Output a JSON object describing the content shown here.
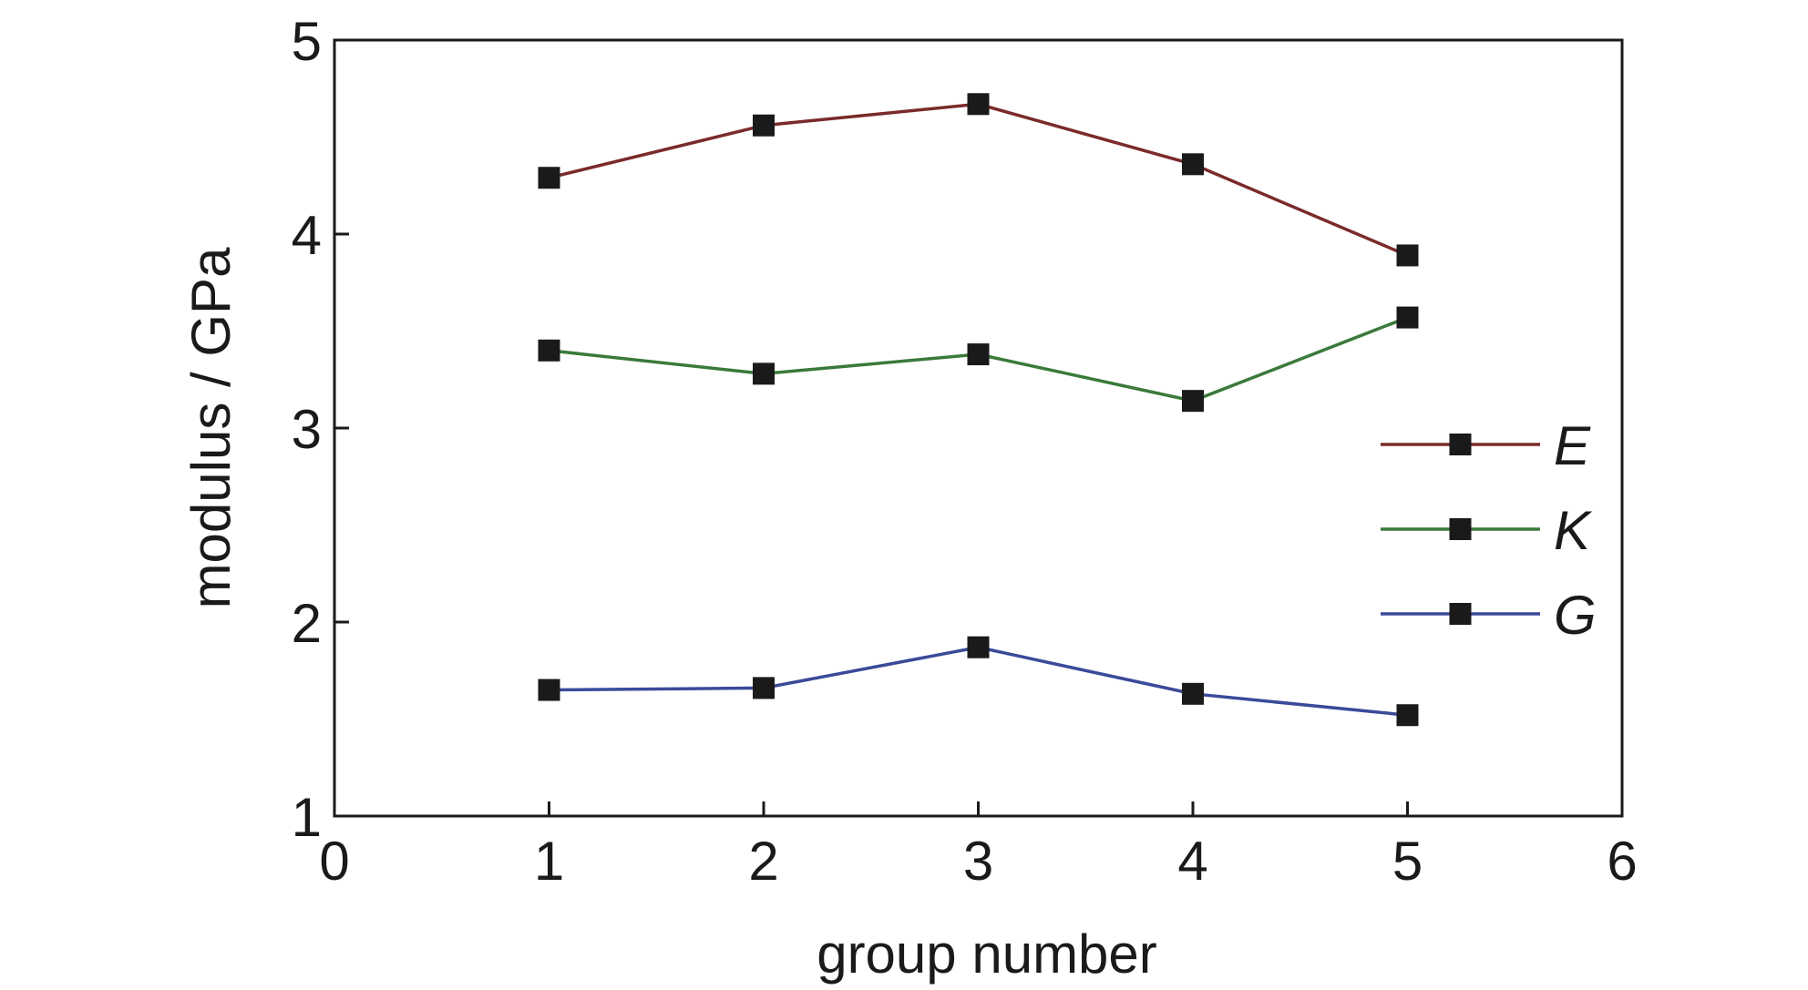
{
  "chart_data": {
    "type": "line",
    "xlabel": "group number",
    "ylabel": "modulus / GPa",
    "xlim": [
      0,
      6
    ],
    "ylim": [
      1,
      5
    ],
    "xticks": [
      0,
      1,
      2,
      3,
      4,
      5,
      6
    ],
    "yticks": [
      1,
      2,
      3,
      4,
      5
    ],
    "grid": false,
    "legend_position": "right",
    "marker": "square",
    "marker_color": "#1a1a1a",
    "x": [
      1,
      2,
      3,
      4,
      5
    ],
    "series": [
      {
        "name": "E",
        "color": "#7a2a2a",
        "values": [
          4.29,
          4.56,
          4.67,
          4.36,
          3.89
        ]
      },
      {
        "name": "K",
        "color": "#3a7a3a",
        "values": [
          3.4,
          3.28,
          3.38,
          3.14,
          3.57
        ]
      },
      {
        "name": "G",
        "color": "#3a4a9a",
        "values": [
          1.65,
          1.66,
          1.87,
          1.63,
          1.52
        ]
      }
    ]
  }
}
